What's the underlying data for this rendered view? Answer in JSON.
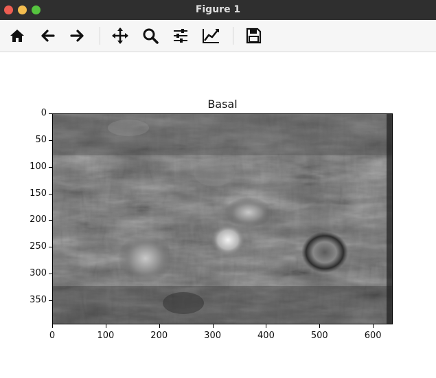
{
  "window": {
    "title": "Figure 1"
  },
  "toolbar": {
    "buttons": [
      {
        "name": "home-icon",
        "label": "Home"
      },
      {
        "name": "back-icon",
        "label": "Back"
      },
      {
        "name": "forward-icon",
        "label": "Forward"
      },
      {
        "name": "pan-icon",
        "label": "Pan"
      },
      {
        "name": "zoom-icon",
        "label": "Zoom"
      },
      {
        "name": "configure-subplots-icon",
        "label": "Subplots"
      },
      {
        "name": "edit-axis-icon",
        "label": "Customize"
      },
      {
        "name": "save-icon",
        "label": "Save"
      }
    ]
  },
  "plot": {
    "title": "Basal",
    "y_ticks": [
      "0",
      "50",
      "100",
      "150",
      "200",
      "250",
      "300",
      "350"
    ],
    "x_ticks": [
      "0",
      "100",
      "200",
      "300",
      "400",
      "500",
      "600"
    ],
    "image_kind": "grayscale-photo"
  },
  "chart_data": {
    "type": "heatmap",
    "title": "Basal",
    "xlabel": "",
    "ylabel": "",
    "xlim": [
      0,
      637
    ],
    "ylim": [
      395,
      0
    ],
    "x_ticks": [
      0,
      100,
      200,
      300,
      400,
      500,
      600
    ],
    "y_ticks": [
      0,
      50,
      100,
      150,
      200,
      250,
      300,
      350
    ],
    "colormap": "gray"
  }
}
